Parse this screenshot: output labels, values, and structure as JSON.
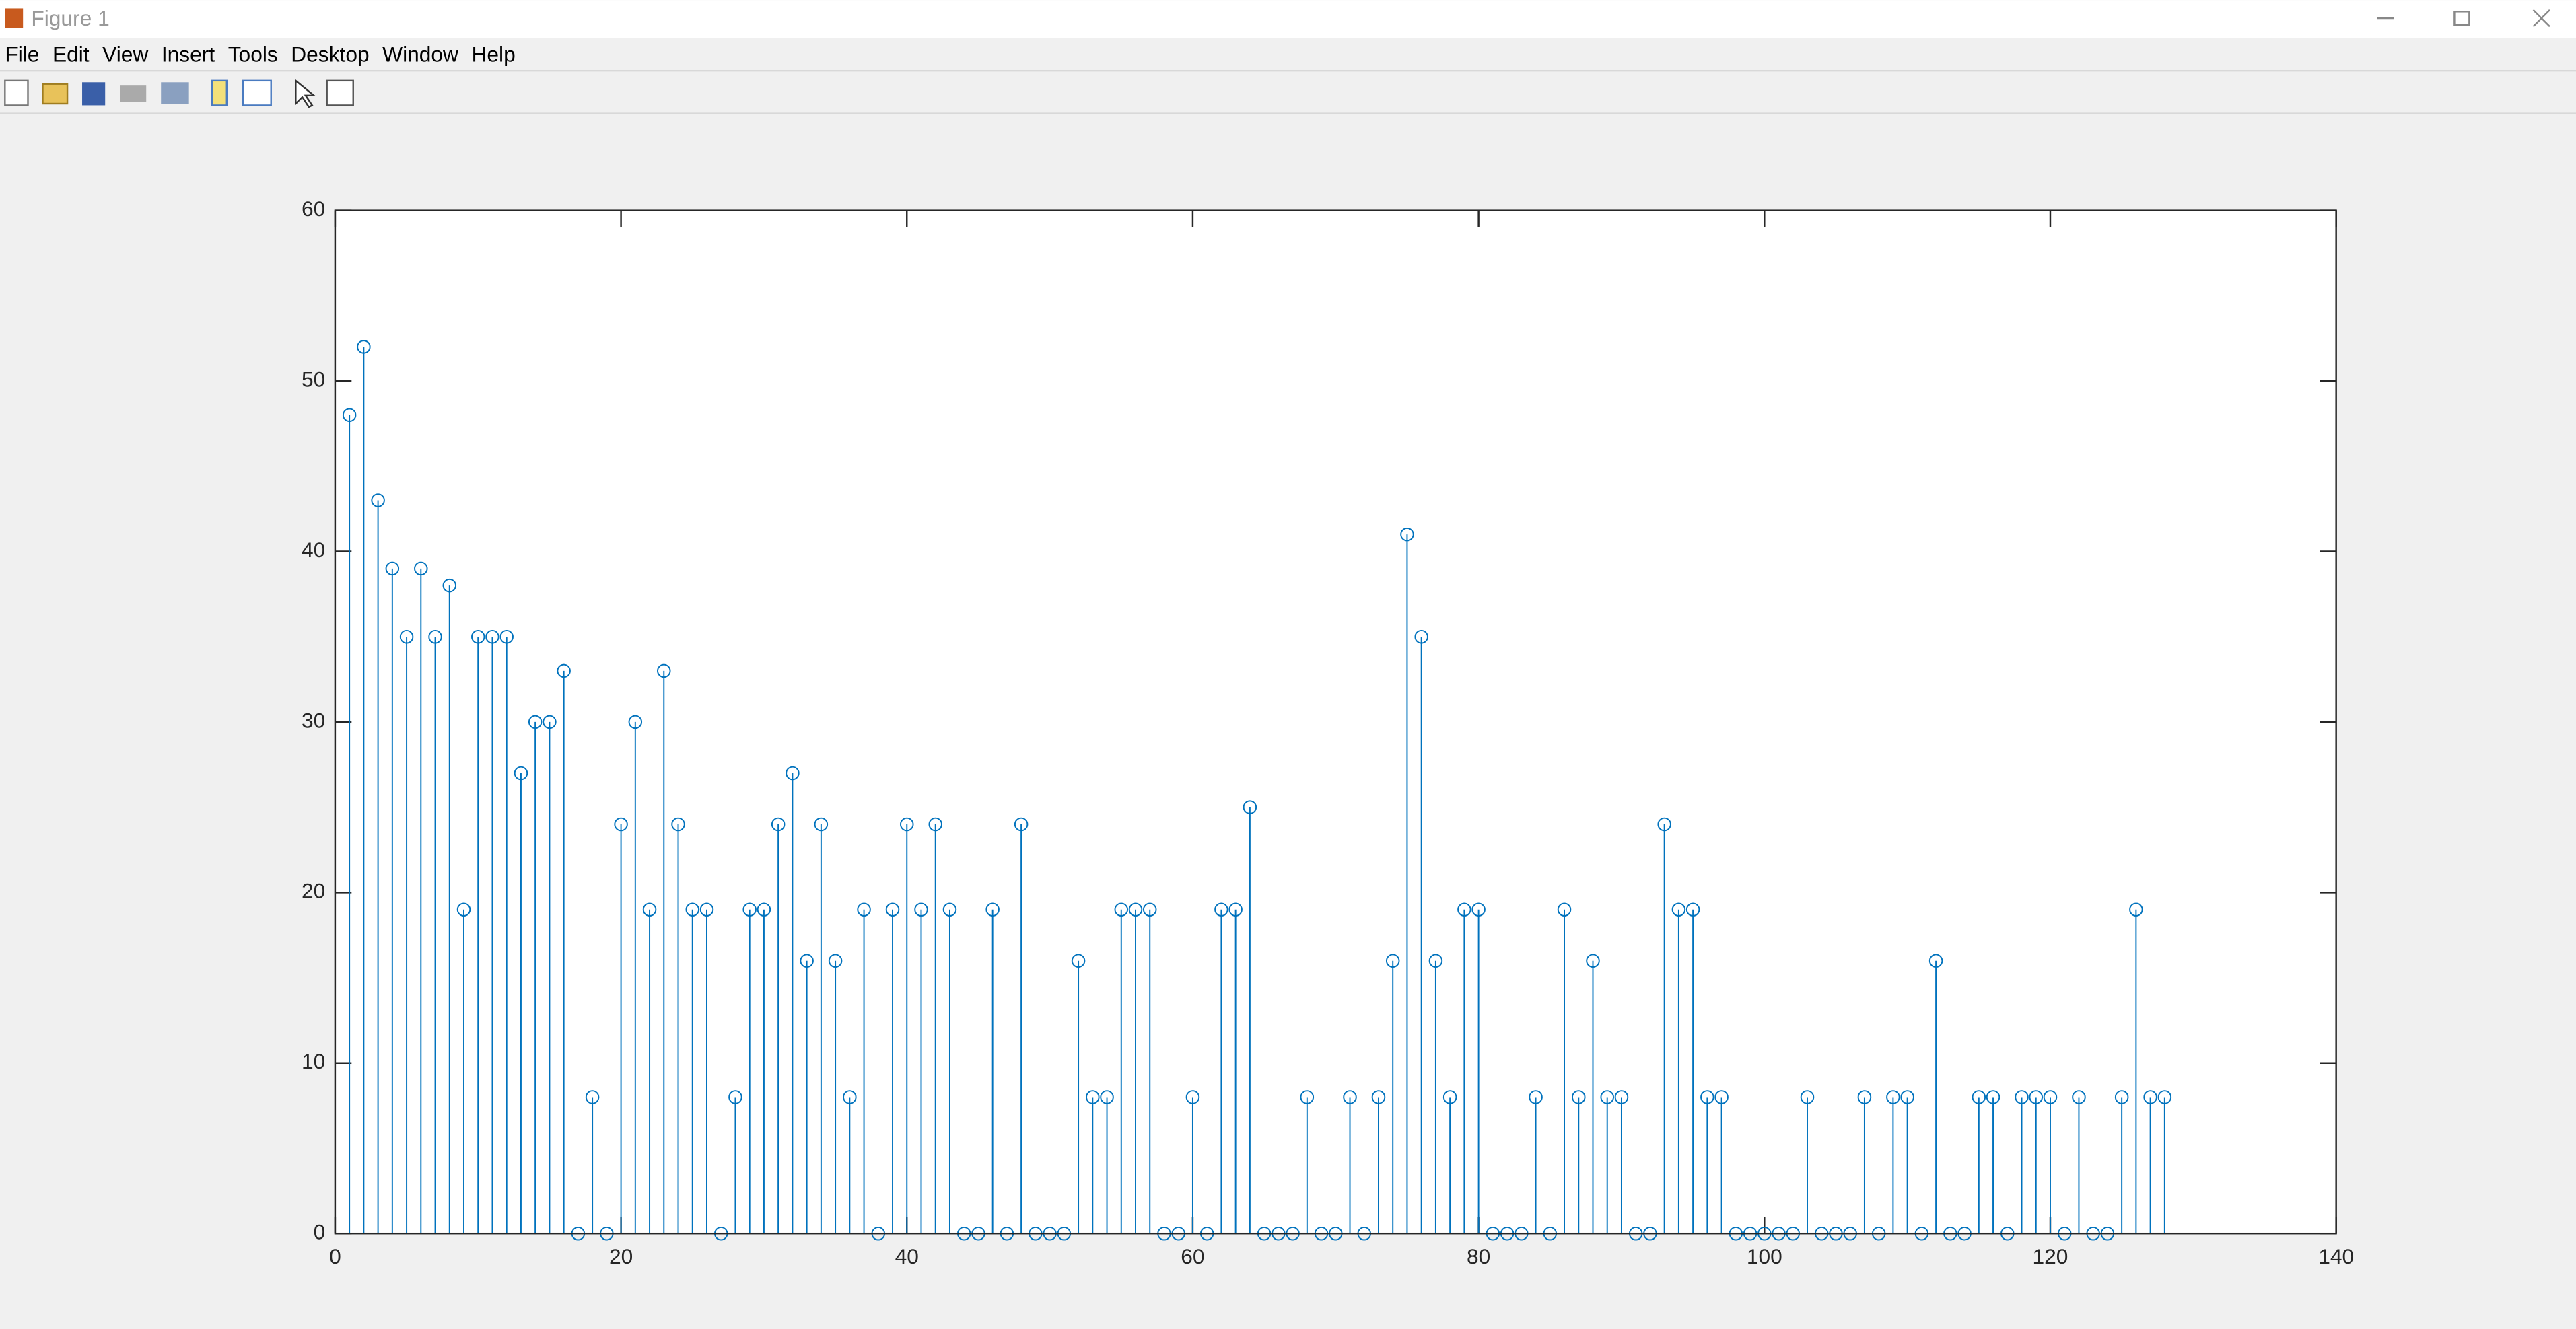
{
  "window": {
    "title": "Figure 1",
    "menu": [
      "File",
      "Edit",
      "View",
      "Insert",
      "Tools",
      "Desktop",
      "Window",
      "Help"
    ]
  },
  "chart_data": {
    "type": "stem",
    "color": "#0072bd",
    "x": [
      1,
      2,
      3,
      4,
      5,
      6,
      7,
      8,
      9,
      10,
      11,
      12,
      13,
      14,
      15,
      16,
      17,
      18,
      19,
      20,
      21,
      22,
      23,
      24,
      25,
      26,
      27,
      28,
      29,
      30,
      31,
      32,
      33,
      34,
      35,
      36,
      37,
      38,
      39,
      40,
      41,
      42,
      43,
      44,
      45,
      46,
      47,
      48,
      49,
      50,
      51,
      52,
      53,
      54,
      55,
      56,
      57,
      58,
      59,
      60,
      61,
      62,
      63,
      64,
      65,
      66,
      67,
      68,
      69,
      70,
      71,
      72,
      73,
      74,
      75,
      76,
      77,
      78,
      79,
      80,
      81,
      82,
      83,
      84,
      85,
      86,
      87,
      88,
      89,
      90,
      91,
      92,
      93,
      94,
      95,
      96,
      97,
      98,
      99,
      100,
      101,
      102,
      103,
      104,
      105,
      106,
      107,
      108,
      109,
      110,
      111,
      112,
      113,
      114,
      115,
      116,
      117,
      118,
      119,
      120,
      121,
      122,
      123,
      124,
      125,
      126,
      127,
      128
    ],
    "values": [
      48,
      52,
      43,
      39,
      35,
      39,
      35,
      38,
      19,
      35,
      35,
      35,
      27,
      30,
      30,
      33,
      0,
      8,
      0,
      24,
      30,
      19,
      33,
      24,
      19,
      19,
      0,
      8,
      19,
      19,
      24,
      27,
      16,
      24,
      16,
      8,
      19,
      0,
      19,
      24,
      19,
      24,
      19,
      0,
      0,
      19,
      0,
      24,
      0,
      0,
      0,
      16,
      8,
      8,
      19,
      19,
      19,
      0,
      0,
      8,
      0,
      19,
      19,
      25,
      0,
      0,
      0,
      8,
      0,
      0,
      8,
      0,
      8,
      16,
      41,
      35,
      16,
      8,
      19,
      19,
      0,
      0,
      0,
      8,
      0,
      19,
      8,
      16,
      8,
      8,
      0,
      0,
      24,
      19,
      19,
      8,
      8,
      0,
      0,
      0,
      0,
      0,
      8,
      0,
      0,
      0,
      8,
      0,
      8,
      8,
      0,
      16,
      0,
      0,
      8,
      8,
      0,
      8,
      8,
      8,
      0,
      8,
      0,
      0,
      8,
      19,
      8,
      8
    ],
    "xlim": [
      0,
      140
    ],
    "xticks": [
      0,
      20,
      40,
      60,
      80,
      100,
      120,
      140
    ],
    "ylim": [
      0,
      60
    ],
    "yticks": [
      0,
      10,
      20,
      30,
      40,
      50,
      60
    ]
  }
}
